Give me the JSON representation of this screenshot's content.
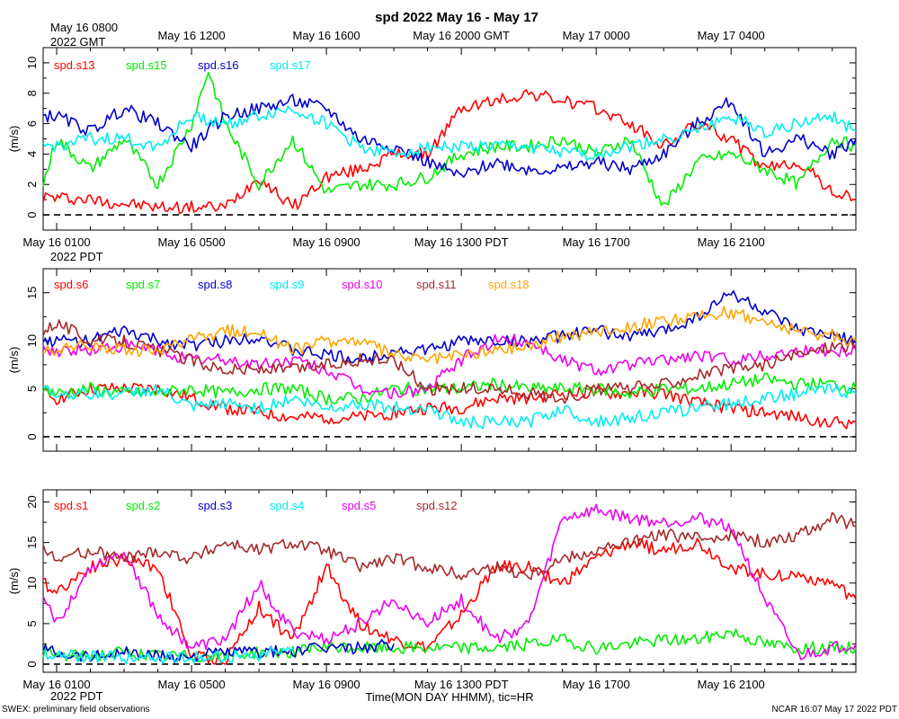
{
  "title": "spd 2022 May 16 - May 17",
  "footer_left": "SWEX: preliminary field observations",
  "footer_right": "NCAR 16:07 May 17 2022 PDT",
  "xlabel": "Time(MON DAY HHMM), tic=HR",
  "gmt_ticks": [
    "May 16 0800",
    "May 16 1200",
    "May 16 1600",
    "May 16 2000 GMT",
    "May 17 0000",
    "May 17 0400"
  ],
  "gmt_sub": "2022 GMT",
  "pdt_ticks": [
    "May 16 0100",
    "May 16 0500",
    "May 16 0900",
    "May 16 1300 PDT",
    "May 16 1700",
    "May 16 2100"
  ],
  "pdt_sub": "2022 PDT",
  "colors": {
    "red": "#ff0000",
    "green": "#00ee00",
    "blue": "#0000cc",
    "cyan": "#00eeee",
    "magenta": "#ee00ee",
    "brown": "#a52a2a",
    "orange": "#ffa500"
  },
  "chart_data": [
    {
      "type": "line",
      "ylabel": "(m/s)",
      "ylim": [
        -1,
        11
      ],
      "yticks": [
        0,
        2,
        4,
        6,
        8,
        10
      ],
      "x_unit": "hours since May 16 0000 PDT",
      "xlim": [
        0.6,
        24.7
      ],
      "series": [
        {
          "name": "spd.s13",
          "color": "red",
          "x": [
            0.6,
            2,
            4,
            6,
            7,
            8,
            9,
            10,
            11,
            12,
            13,
            14,
            15,
            16,
            17,
            18,
            19,
            20,
            21,
            22,
            23,
            24,
            24.7
          ],
          "values": [
            1.2,
            1,
            0.5,
            0.5,
            2.5,
            0.5,
            2.5,
            3,
            4,
            4,
            7,
            7.5,
            8,
            7.5,
            7,
            6,
            4.5,
            6,
            5,
            3,
            3.5,
            1.5,
            1
          ]
        },
        {
          "name": "spd.s15",
          "color": "green",
          "x": [
            0.6,
            1,
            2,
            3,
            4,
            5,
            5.5,
            6,
            7,
            8,
            9,
            10,
            11,
            12,
            13,
            14,
            15,
            16,
            17,
            18,
            19,
            20,
            21,
            22,
            23,
            24,
            24.7
          ],
          "values": [
            2,
            5,
            3,
            5,
            2,
            6,
            9.5,
            6,
            2,
            5,
            1.5,
            2,
            2,
            2.5,
            4,
            4.5,
            4.5,
            5,
            4,
            5,
            0.5,
            3.5,
            4,
            3,
            2,
            5,
            4.5
          ]
        },
        {
          "name": "spd.s16",
          "color": "blue",
          "x": [
            0.6,
            1,
            2,
            3,
            4,
            5,
            6,
            7,
            8,
            9,
            10,
            11,
            12,
            13,
            14,
            15,
            16,
            17,
            18,
            19,
            20,
            21,
            22,
            23,
            24,
            24.7
          ],
          "values": [
            6.5,
            6.5,
            5.5,
            7,
            6,
            4.5,
            6.5,
            7,
            7.5,
            7,
            5,
            4.5,
            3.5,
            2.5,
            3.5,
            3,
            3,
            3.5,
            3,
            4,
            6,
            7.5,
            4,
            5,
            4,
            5
          ]
        },
        {
          "name": "spd.s17",
          "color": "cyan",
          "x": [
            0.6,
            1,
            2,
            3,
            4,
            5,
            6,
            7,
            8,
            9,
            10,
            11,
            12,
            13,
            14,
            15,
            16,
            17,
            18,
            19,
            20,
            21,
            22,
            23,
            24,
            24.7
          ],
          "values": [
            4.5,
            4.5,
            5,
            5,
            4.5,
            6.5,
            6,
            6.5,
            7,
            6,
            4.5,
            4,
            4.5,
            4.5,
            4.5,
            4.5,
            4,
            4,
            4.5,
            5,
            5.5,
            6.5,
            5.5,
            6,
            6.5,
            5.5
          ]
        }
      ]
    },
    {
      "type": "line",
      "ylabel": "(m/s)",
      "ylim": [
        -1.5,
        17.5
      ],
      "yticks": [
        0,
        5,
        10,
        15
      ],
      "x_unit": "hours since May 16 0000 PDT",
      "xlim": [
        0.6,
        24.7
      ],
      "series": [
        {
          "name": "spd.s6",
          "color": "red",
          "x": [
            0.6,
            1,
            2,
            3,
            4,
            5,
            6,
            7,
            8,
            9,
            10,
            11,
            12,
            13,
            14,
            15,
            16,
            17,
            18,
            19,
            20,
            21,
            22,
            23,
            24,
            24.7
          ],
          "values": [
            4.5,
            4,
            5,
            5,
            5,
            4,
            3,
            2.5,
            2,
            2,
            2,
            2.5,
            3,
            3,
            4,
            4,
            4.5,
            4.5,
            4.5,
            4.5,
            3.5,
            3,
            2.5,
            2,
            1.5,
            1.5
          ]
        },
        {
          "name": "spd.s7",
          "color": "green",
          "x": [
            0.6,
            1,
            2,
            3,
            4,
            5,
            6,
            7,
            8,
            9,
            10,
            11,
            12,
            13,
            14,
            15,
            16,
            17,
            18,
            19,
            20,
            21,
            22,
            23,
            24,
            24.7
          ],
          "values": [
            5,
            4.5,
            5,
            4.5,
            4.5,
            5,
            4.5,
            5,
            5,
            4,
            4,
            5,
            5,
            5,
            5.5,
            5,
            5,
            5,
            4.5,
            5,
            5,
            5.5,
            6,
            5.5,
            5.5,
            5
          ]
        },
        {
          "name": "spd.s8",
          "color": "blue",
          "x": [
            0.6,
            1,
            2,
            3,
            4,
            5,
            6,
            7,
            8,
            9,
            10,
            11,
            12,
            13,
            14,
            15,
            16,
            17,
            18,
            19,
            20,
            21,
            22,
            23,
            24,
            24.7
          ],
          "values": [
            10,
            10,
            10,
            11,
            10,
            9.5,
            10,
            10.5,
            9,
            8.5,
            8,
            9,
            9,
            10,
            10,
            10,
            10.5,
            11,
            10.5,
            11,
            12.5,
            15,
            13,
            11,
            10.5,
            10
          ]
        },
        {
          "name": "spd.s9",
          "color": "cyan",
          "x": [
            0.6,
            1,
            2,
            3,
            4,
            5,
            6,
            7,
            8,
            9,
            10,
            11,
            12,
            13,
            14,
            15,
            16,
            17,
            18,
            19,
            20,
            21,
            22,
            23,
            24,
            24.7
          ],
          "values": [
            5,
            4.5,
            4.5,
            4.5,
            5,
            3,
            3.5,
            3,
            4,
            3,
            3.5,
            3,
            3,
            1.5,
            1.5,
            1.5,
            3,
            1.5,
            2,
            2.5,
            3,
            3.5,
            4,
            4.5,
            5,
            4.5
          ]
        },
        {
          "name": "spd.s10",
          "color": "magenta",
          "x": [
            0.6,
            1,
            2,
            3,
            4,
            5,
            6,
            7,
            8,
            9,
            10,
            11,
            12,
            13,
            14,
            15,
            16,
            17,
            18,
            19,
            20,
            21,
            22,
            23,
            24,
            24.7
          ],
          "values": [
            9,
            9,
            9,
            9.5,
            9,
            8,
            8,
            7.5,
            8,
            7,
            5,
            4.5,
            5,
            8,
            10,
            10,
            8,
            7,
            7.5,
            8,
            8.5,
            8,
            8.5,
            9,
            9,
            9
          ]
        },
        {
          "name": "spd.s11",
          "color": "brown",
          "x": [
            0.6,
            1,
            2,
            3,
            4,
            5,
            6,
            7,
            8,
            9,
            10,
            11,
            12,
            13,
            14,
            15,
            16,
            17,
            18,
            19,
            20,
            21,
            22,
            23,
            24,
            24.7
          ],
          "values": [
            11,
            12,
            10,
            10,
            9,
            8,
            7,
            7,
            7,
            7.5,
            8,
            8,
            5,
            5,
            5,
            4.5,
            4,
            5,
            5,
            5.5,
            6.5,
            7,
            7.5,
            8.5,
            9.5,
            9.5
          ]
        },
        {
          "name": "spd.s18",
          "color": "orange",
          "x": [
            0.6,
            1,
            2,
            3,
            4,
            5,
            6,
            7,
            8,
            9,
            10,
            11,
            12,
            13,
            14,
            15,
            16,
            17,
            18,
            19,
            20,
            21,
            22,
            23,
            24,
            24.7
          ],
          "values": [
            9,
            9,
            9.5,
            9,
            9,
            10,
            11,
            11,
            9,
            10,
            10,
            8.5,
            8,
            8.5,
            9,
            9.5,
            10.5,
            11,
            11.5,
            12,
            12.5,
            13,
            12,
            11,
            10.5,
            10
          ]
        }
      ]
    },
    {
      "type": "line",
      "ylabel": "(m/s)",
      "ylim": [
        -1,
        21.5
      ],
      "yticks": [
        0,
        5,
        10,
        15,
        20
      ],
      "x_unit": "hours since May 16 0000 PDT",
      "xlim": [
        0.6,
        24.7
      ],
      "series": [
        {
          "name": "spd.s1",
          "color": "red",
          "x": [
            0.6,
            1,
            2,
            3,
            4,
            5,
            6,
            7,
            8,
            9,
            10,
            11,
            12,
            13,
            14,
            15,
            16,
            17,
            18,
            19,
            20,
            21,
            22,
            23,
            24,
            24.7
          ],
          "values": [
            10,
            9,
            12,
            13,
            12,
            1,
            0.5,
            7,
            3,
            12,
            5,
            3,
            2,
            6,
            12,
            12,
            10,
            13,
            15,
            14,
            15,
            12,
            11,
            11,
            10,
            8
          ]
        },
        {
          "name": "spd.s2",
          "color": "green",
          "x": [
            0.6,
            1,
            2,
            3,
            4,
            5,
            6,
            7,
            8,
            9,
            10,
            11,
            12,
            13,
            14,
            15,
            16,
            17,
            18,
            19,
            20,
            21,
            22,
            23,
            24,
            24.7
          ],
          "values": [
            1.5,
            1,
            1,
            1.5,
            1,
            1,
            1,
            1.5,
            1.5,
            2,
            2,
            2,
            2,
            2,
            2,
            2.5,
            3,
            2,
            2.5,
            3,
            3,
            4,
            2.5,
            2,
            2,
            2
          ]
        },
        {
          "name": "spd.s3",
          "color": "blue",
          "x": [
            0.6,
            1,
            2,
            3,
            4,
            5,
            6,
            7,
            8,
            9,
            10,
            11
          ],
          "values": [
            2,
            1.5,
            1,
            1.5,
            1,
            1,
            1.5,
            1.5,
            1.5,
            2,
            2,
            2.5
          ]
        },
        {
          "name": "spd.s4",
          "color": "cyan",
          "x": [
            0.6,
            1,
            2,
            3,
            4,
            5,
            6,
            7,
            8
          ],
          "values": [
            1.5,
            1,
            1,
            0.8,
            0.8,
            0.8,
            1,
            1,
            2
          ]
        },
        {
          "name": "spd.s5",
          "color": "magenta",
          "x": [
            0.6,
            1,
            2,
            3,
            4,
            5,
            6,
            7,
            8,
            9,
            10,
            11,
            12,
            13,
            14,
            15,
            16,
            17,
            18,
            19,
            20,
            21,
            22,
            23,
            24,
            24.7
          ],
          "values": [
            8,
            5,
            12,
            14,
            6,
            2,
            3,
            10,
            4,
            3,
            5,
            8,
            5,
            8,
            3,
            5,
            18,
            19,
            18,
            17.5,
            18,
            17,
            8,
            1,
            2,
            2.5
          ]
        },
        {
          "name": "spd.s12",
          "color": "brown",
          "x": [
            0.6,
            1,
            2,
            3,
            4,
            5,
            6,
            7,
            8,
            9,
            10,
            11,
            12,
            13,
            14,
            15,
            16,
            17,
            18,
            19,
            20,
            21,
            22,
            23,
            24,
            24.7
          ],
          "values": [
            14,
            13,
            14,
            13,
            14,
            13,
            15,
            14,
            15,
            14,
            12,
            13,
            12,
            11,
            12,
            11,
            13,
            14,
            15,
            16,
            15.5,
            16,
            15,
            16,
            18,
            17
          ]
        }
      ]
    }
  ]
}
